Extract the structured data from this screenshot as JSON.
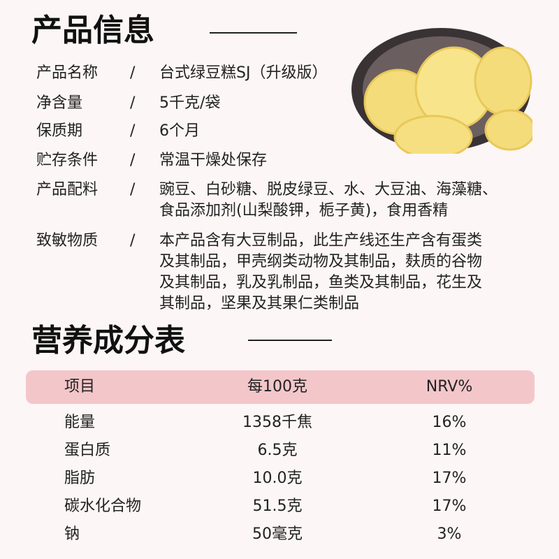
{
  "product_info": {
    "title": "产品信息",
    "separator": "/",
    "rows": [
      {
        "label": "产品名称",
        "value": [
          "台式绿豆糕SJ（升级版）"
        ]
      },
      {
        "label": "净含量",
        "value": [
          "5千克/袋"
        ]
      },
      {
        "label": "保质期",
        "value": [
          "6个月"
        ]
      },
      {
        "label": "贮存条件",
        "value": [
          "常温干燥处保存"
        ]
      },
      {
        "label": "产品配料",
        "value": [
          "豌豆、白砂糖、脱皮绿豆、水、大豆油、海藻糖、",
          "食品添加剂(山梨酸钾，栀子黄)，食用香精"
        ]
      },
      {
        "label": "致敏物质",
        "value": [
          "本产品含有大豆制品，此生产线还生产含有蛋类",
          "及其制品，甲壳纲类动物及其制品，麸质的谷物",
          "及其制品，乳及乳制品，鱼类及其制品，花生及",
          "其制品，坚果及其果仁类制品"
        ]
      }
    ]
  },
  "nutrition": {
    "title": "营养成分表",
    "header": [
      "项目",
      "每100克",
      "NRV%"
    ],
    "rows": [
      [
        "能量",
        "1358千焦",
        "16%"
      ],
      [
        "蛋白质",
        "6.5克",
        "11%"
      ],
      [
        "脂肪",
        "10.0克",
        "17%"
      ],
      [
        "碳水化合物",
        "51.5克",
        "17%"
      ],
      [
        "钠",
        "50毫克",
        "3%"
      ]
    ]
  }
}
